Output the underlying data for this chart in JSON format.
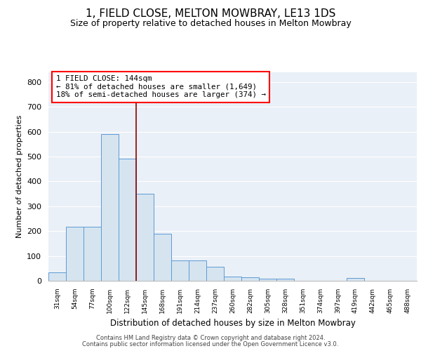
{
  "title": "1, FIELD CLOSE, MELTON MOWBRAY, LE13 1DS",
  "subtitle": "Size of property relative to detached houses in Melton Mowbray",
  "xlabel": "Distribution of detached houses by size in Melton Mowbray",
  "ylabel": "Number of detached properties",
  "bar_values": [
    33,
    218,
    218,
    590,
    490,
    350,
    188,
    83,
    83,
    57,
    18,
    13,
    8,
    8,
    0,
    0,
    0,
    10,
    0,
    0,
    0
  ],
  "x_labels": [
    "31sqm",
    "54sqm",
    "77sqm",
    "100sqm",
    "122sqm",
    "145sqm",
    "168sqm",
    "191sqm",
    "214sqm",
    "237sqm",
    "260sqm",
    "282sqm",
    "305sqm",
    "328sqm",
    "351sqm",
    "374sqm",
    "397sqm",
    "419sqm",
    "442sqm",
    "465sqm",
    "488sqm"
  ],
  "bar_color": "#d6e4f0",
  "bar_edge_color": "#5b9bd5",
  "annotation_text": "1 FIELD CLOSE: 144sqm\n← 81% of detached houses are smaller (1,649)\n18% of semi-detached houses are larger (374) →",
  "vline_x": 5,
  "vline_color": "#8b0000",
  "ylim": [
    0,
    840
  ],
  "yticks": [
    0,
    100,
    200,
    300,
    400,
    500,
    600,
    700,
    800
  ],
  "footer_line1": "Contains HM Land Registry data © Crown copyright and database right 2024.",
  "footer_line2": "Contains public sector information licensed under the Open Government Licence v3.0.",
  "background_color": "#eaf0f7",
  "grid_color": "#ffffff"
}
